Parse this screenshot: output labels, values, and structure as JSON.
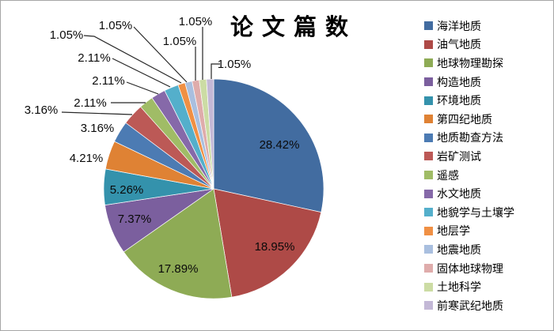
{
  "window": {
    "background": "#ffffff",
    "border_color": "#a6a6a6"
  },
  "chart_data": {
    "type": "pie",
    "title": "论文篇数",
    "legend_position": "right",
    "start_angle_deg": 0,
    "direction": "clockwise",
    "units": "percent",
    "label_style": "outside-leader-lines-for-small-slices",
    "series": [
      {
        "label": "海洋地质",
        "value": 28.42,
        "pct_label": "28.42%",
        "color": "#426CA0"
      },
      {
        "label": "油气地质",
        "value": 18.95,
        "pct_label": "18.95%",
        "color": "#AE4A47"
      },
      {
        "label": "地球物理勘探",
        "value": 17.89,
        "pct_label": "17.89%",
        "color": "#8EAB55"
      },
      {
        "label": "构造地质",
        "value": 7.37,
        "pct_label": "7.37%",
        "color": "#7B5F9E"
      },
      {
        "label": "环境地质",
        "value": 5.26,
        "pct_label": "5.26%",
        "color": "#3492AC"
      },
      {
        "label": "第四纪地质",
        "value": 4.21,
        "pct_label": "4.21%",
        "color": "#DF8234"
      },
      {
        "label": "地质勘查方法",
        "value": 3.16,
        "pct_label": "3.16%",
        "color": "#4C7BB3"
      },
      {
        "label": "岩矿测试",
        "value": 3.16,
        "pct_label": "3.16%",
        "color": "#BC5956"
      },
      {
        "label": "遥感",
        "value": 2.11,
        "pct_label": "2.11%",
        "color": "#A0BC66"
      },
      {
        "label": "水文地质",
        "value": 2.11,
        "pct_label": "2.11%",
        "color": "#8669A9"
      },
      {
        "label": "地貌学与土壤学",
        "value": 2.11,
        "pct_label": "2.11%",
        "color": "#54AFCB"
      },
      {
        "label": "地层学",
        "value": 1.05,
        "pct_label": "1.05%",
        "color": "#F09044"
      },
      {
        "label": "地震地质",
        "value": 1.05,
        "pct_label": "1.05%",
        "color": "#A9BFDF"
      },
      {
        "label": "固体地球物理",
        "value": 1.05,
        "pct_label": "1.05%",
        "color": "#DFACAB"
      },
      {
        "label": "土地科学",
        "value": 1.05,
        "pct_label": "1.05%",
        "color": "#CCDCA4"
      },
      {
        "label": "前寒武纪地质",
        "value": 1.05,
        "pct_label": "1.05%",
        "color": "#C3B8D6"
      }
    ]
  }
}
